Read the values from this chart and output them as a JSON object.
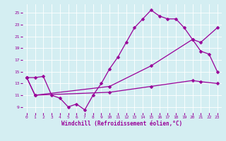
{
  "xlabel": "Windchill (Refroidissement éolien,°C)",
  "background_color": "#d4eef2",
  "line_color": "#990099",
  "xlim": [
    -0.5,
    23.5
  ],
  "ylim": [
    8.0,
    26.5
  ],
  "yticks": [
    9,
    11,
    13,
    15,
    17,
    19,
    21,
    23,
    25
  ],
  "xticks": [
    0,
    1,
    2,
    3,
    4,
    5,
    6,
    7,
    8,
    9,
    10,
    11,
    12,
    13,
    14,
    15,
    16,
    17,
    18,
    19,
    20,
    21,
    22,
    23
  ],
  "line1_x": [
    0,
    1,
    2,
    3,
    4,
    5,
    6,
    7,
    8,
    9,
    10,
    11,
    12,
    13,
    14,
    15,
    16,
    17,
    18,
    19,
    20,
    21,
    22,
    23
  ],
  "line1_y": [
    14.0,
    14.0,
    14.2,
    11.0,
    10.5,
    9.0,
    9.5,
    8.5,
    11.0,
    13.0,
    15.5,
    17.5,
    20.0,
    22.5,
    24.0,
    25.5,
    24.5,
    24.0,
    24.0,
    22.5,
    20.5,
    18.5,
    18.0,
    15.0
  ],
  "line2_x": [
    0,
    1,
    10,
    15,
    20,
    21,
    23
  ],
  "line2_y": [
    14.0,
    11.0,
    12.5,
    16.0,
    20.5,
    20.0,
    22.5
  ],
  "line3_x": [
    0,
    1,
    10,
    15,
    20,
    21,
    23
  ],
  "line3_y": [
    14.0,
    11.0,
    11.5,
    12.5,
    13.5,
    13.3,
    13.0
  ],
  "markersize": 2.5,
  "linewidth": 0.9
}
